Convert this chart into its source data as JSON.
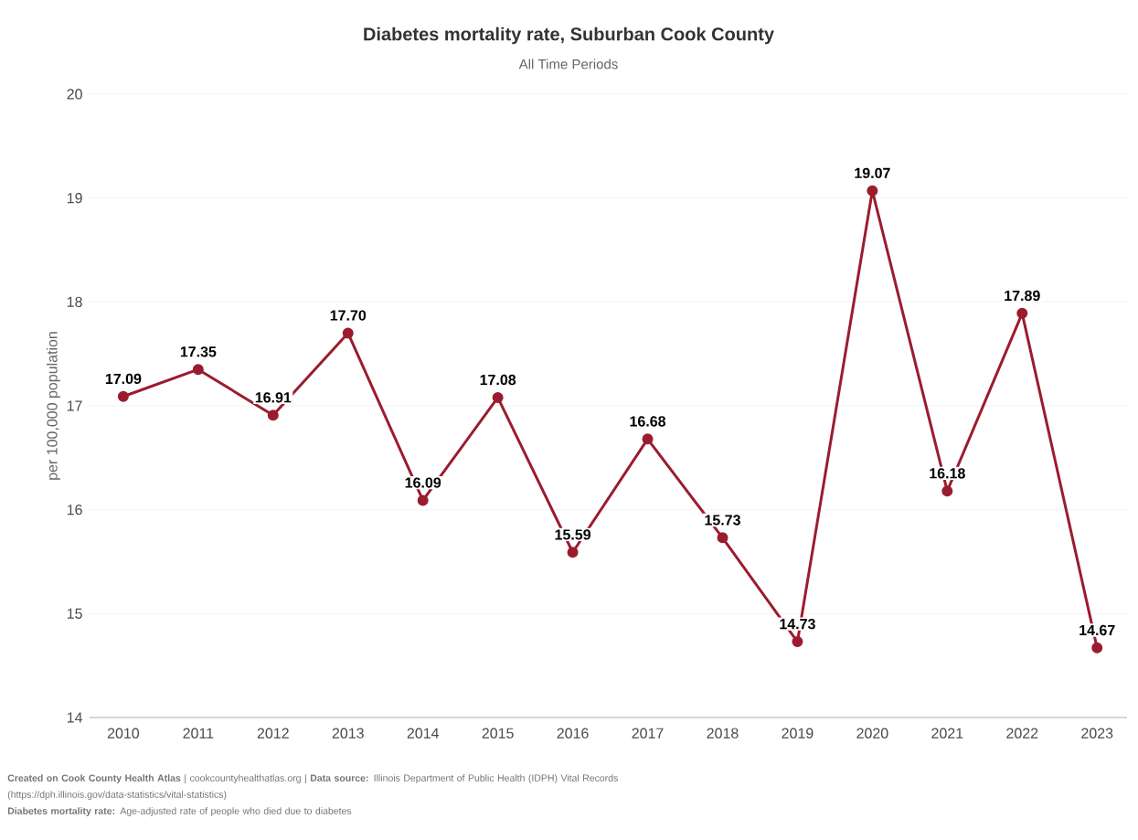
{
  "chart_data": {
    "type": "line",
    "title": "Diabetes mortality rate, Suburban Cook County",
    "subtitle": "All Time Periods",
    "ylabel": "per 100,000 population",
    "categories": [
      "2010",
      "2011",
      "2012",
      "2013",
      "2014",
      "2015",
      "2016",
      "2017",
      "2018",
      "2019",
      "2020",
      "2021",
      "2022",
      "2023"
    ],
    "values": [
      17.09,
      17.35,
      16.91,
      17.7,
      16.09,
      17.08,
      15.59,
      16.68,
      15.73,
      14.73,
      19.07,
      16.18,
      17.89,
      14.67
    ],
    "value_labels": [
      "17.09",
      "17.35",
      "16.91",
      "17.70",
      "16.09",
      "17.08",
      "15.59",
      "16.68",
      "15.73",
      "14.73",
      "19.07",
      "16.18",
      "17.89",
      "14.67"
    ],
    "color": "#9b1c2e",
    "marker": "circle",
    "line_style": "solid",
    "grid": "y",
    "ylim": [
      14,
      20
    ],
    "yticks": [
      14,
      15,
      16,
      17,
      18,
      19,
      20
    ],
    "annotations": [
      "**Created on Cook County Health Atlas** | cookcountyhealthatlas.org | **Data source:** Illinois Department of Public Health (IDPH) Vital Records (https://dph.illinois.gov/data-statistics/vital-statistics)",
      "**Diabetes mortality rate:** Age-adjusted rate of people who died due to diabetes"
    ]
  }
}
